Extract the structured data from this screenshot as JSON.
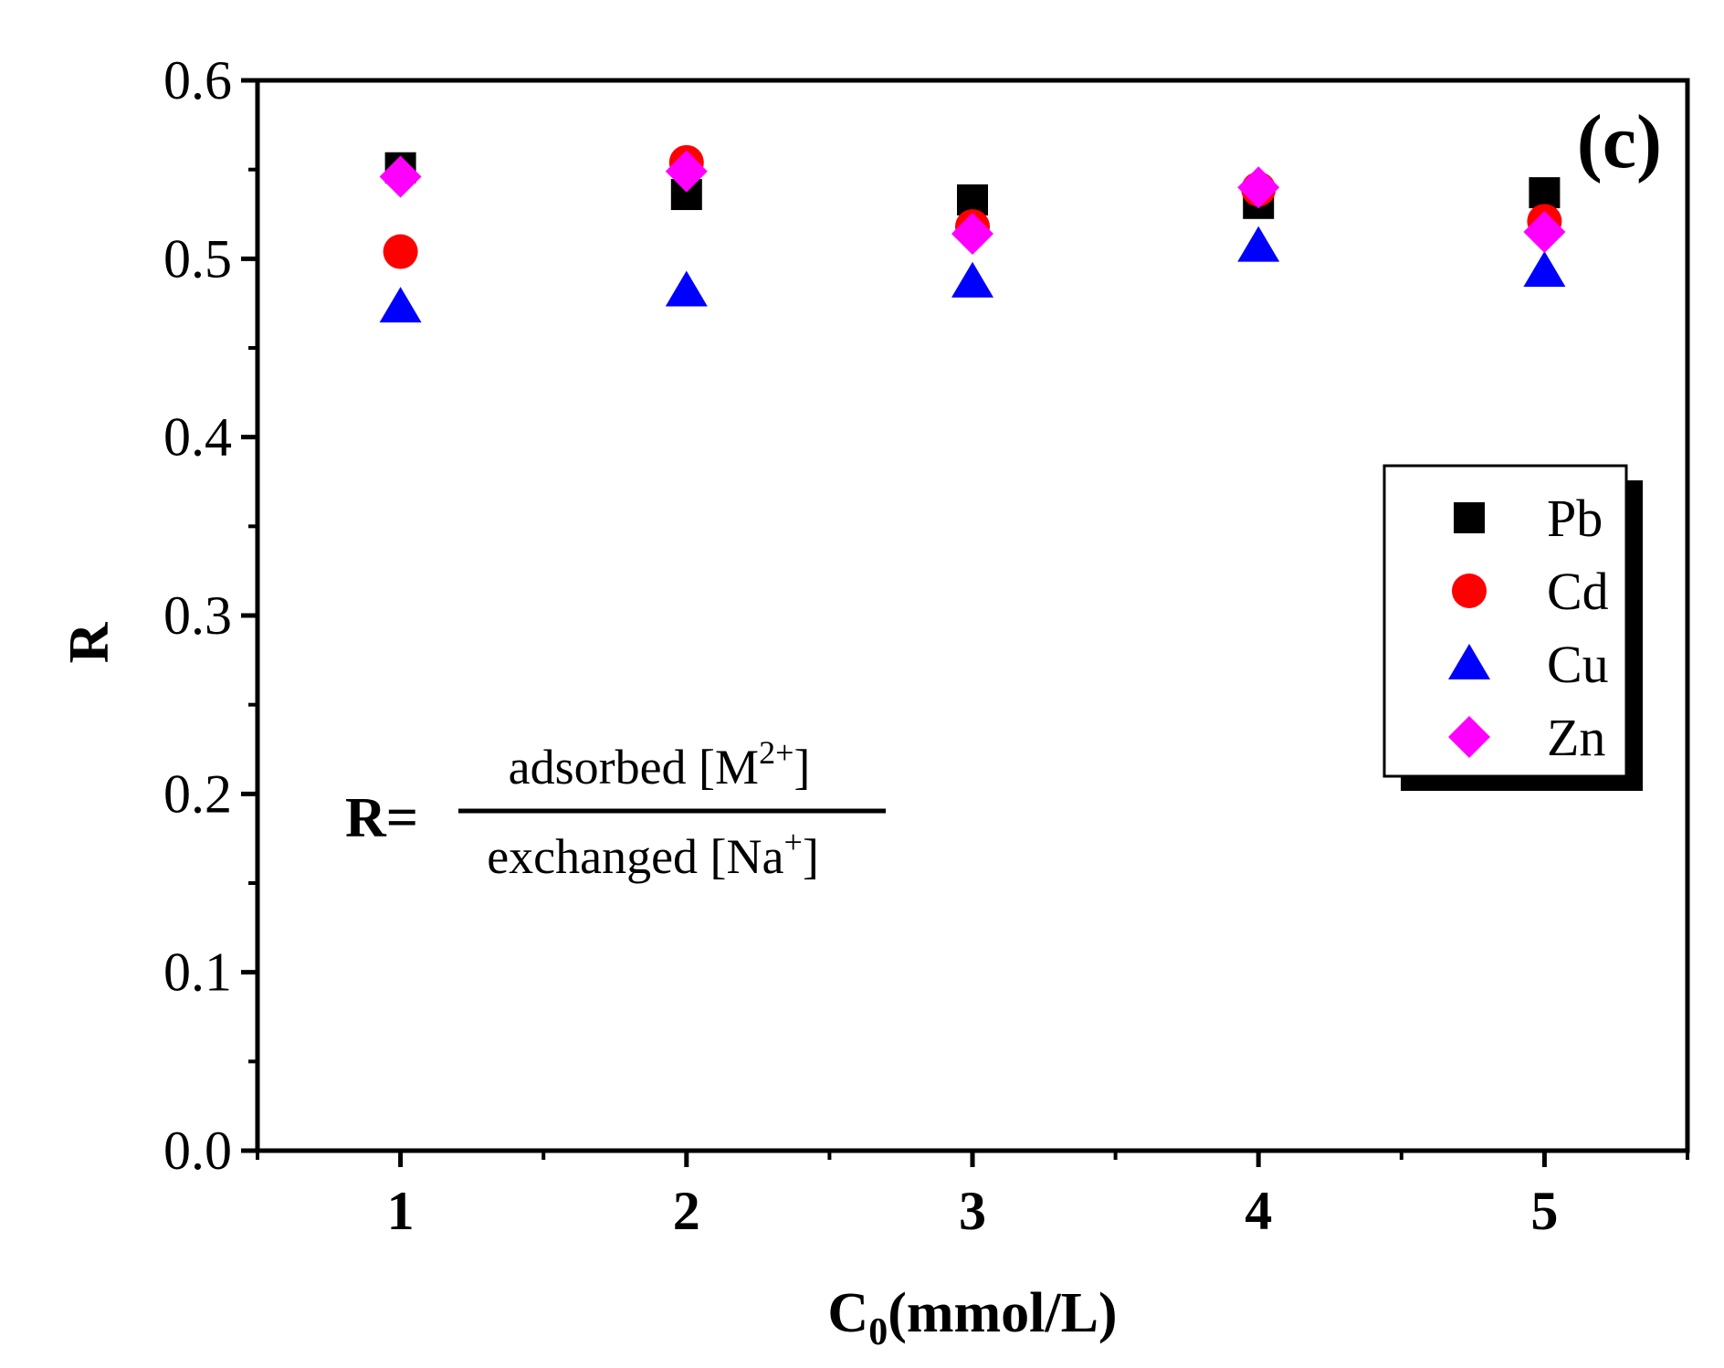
{
  "chart_data": {
    "type": "scatter",
    "panel_label": "(c)",
    "xlabel": {
      "main": "C",
      "sub": "0",
      "rest": "(mmol/L)"
    },
    "ylabel": "R",
    "xlim": [
      0.5,
      5.5
    ],
    "ylim": [
      0.0,
      0.6
    ],
    "x_ticks": [
      1,
      2,
      3,
      4,
      5
    ],
    "x_tick_labels": [
      "1",
      "2",
      "3",
      "4",
      "5"
    ],
    "y_ticks": [
      0.0,
      0.1,
      0.2,
      0.3,
      0.4,
      0.5,
      0.6
    ],
    "y_tick_labels": [
      "0.0",
      "0.1",
      "0.2",
      "0.3",
      "0.4",
      "0.5",
      "0.6"
    ],
    "grid": false,
    "legend_position": "right",
    "series": [
      {
        "name": "Pb",
        "marker": "square",
        "color": "#000000",
        "x": [
          1,
          2,
          3,
          4,
          5
        ],
        "y": [
          0.551,
          0.536,
          0.533,
          0.531,
          0.537
        ]
      },
      {
        "name": "Cd",
        "marker": "circle",
        "color": "#ff0000",
        "x": [
          1,
          2,
          3,
          4,
          5
        ],
        "y": [
          0.504,
          0.554,
          0.518,
          0.539,
          0.521
        ]
      },
      {
        "name": "Cu",
        "marker": "triangle",
        "color": "#0000ff",
        "x": [
          1,
          2,
          3,
          4,
          5
        ],
        "y": [
          0.473,
          0.482,
          0.487,
          0.507,
          0.493
        ]
      },
      {
        "name": "Zn",
        "marker": "diamond",
        "color": "#ff00ff",
        "x": [
          1,
          2,
          3,
          4,
          5
        ],
        "y": [
          0.546,
          0.549,
          0.514,
          0.54,
          0.515
        ]
      }
    ],
    "annotation": {
      "lhs": "R=",
      "numerator": {
        "text": "adsorbed [M",
        "sup": "2+",
        "close": "]"
      },
      "denominator": {
        "text": "exchanged [Na",
        "sup": "+",
        "close": "]"
      }
    }
  }
}
